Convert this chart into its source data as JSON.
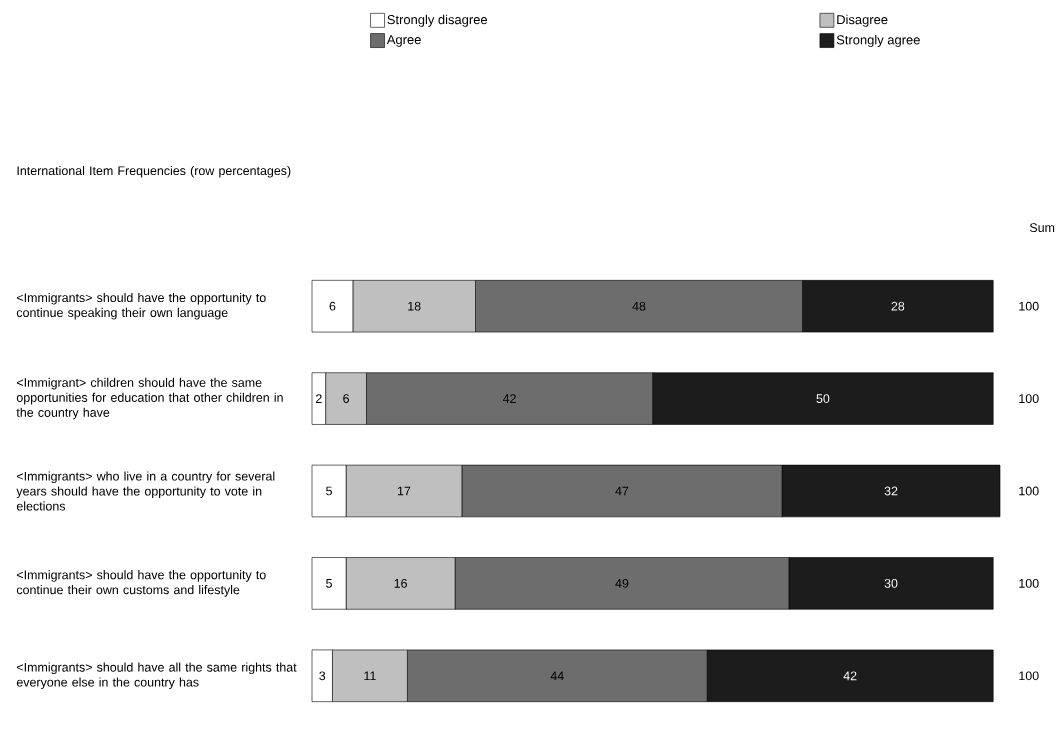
{
  "chart_data": {
    "type": "bar",
    "orientation": "horizontal",
    "stacked": true,
    "title": "International Item Frequencies (row percentages)",
    "categories": [
      "<Immigrants> should have the opportunity to continue speaking their own language",
      "<Immigrant> children should have the same opportunities for education that other children in the country have",
      "<Immigrants> who live in a country for several years should have the opportunity to vote in elections",
      "<Immigrants> should have the opportunity to continue their own customs and lifestyle",
      "<Immigrants> should have all the same rights that everyone else in the country has"
    ],
    "series": [
      {
        "name": "Strongly disagree",
        "color": "#ffffff",
        "values": [
          6,
          2,
          5,
          5,
          3
        ]
      },
      {
        "name": "Disagree",
        "color": "#bfbfbf",
        "values": [
          18,
          6,
          17,
          16,
          11
        ]
      },
      {
        "name": "Agree",
        "color": "#6d6d6d",
        "values": [
          48,
          42,
          47,
          49,
          44
        ]
      },
      {
        "name": "Strongly agree",
        "color": "#1c1c1c",
        "values": [
          28,
          50,
          32,
          30,
          42
        ]
      }
    ],
    "data_labels": true,
    "totals": [
      "100",
      "100",
      "100",
      "100",
      "100"
    ],
    "annotations": [
      "Sum"
    ],
    "legend": "top",
    "tick_labels": "y"
  }
}
